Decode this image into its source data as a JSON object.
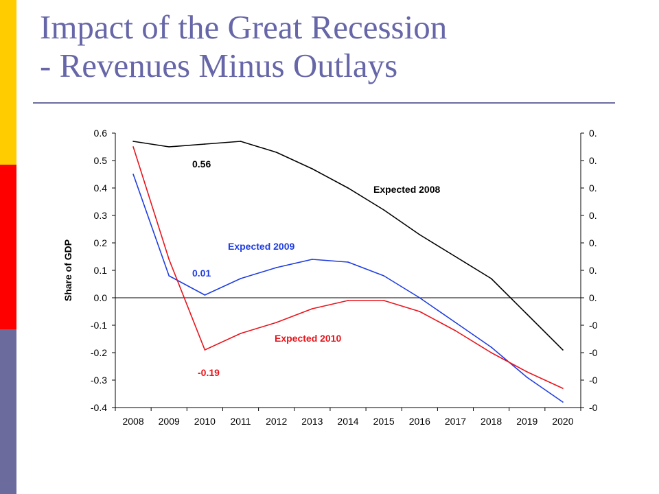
{
  "slide": {
    "title_line1": "Impact of the Great Recession",
    "title_line2": "- Revenues Minus Outlays",
    "accent_colors": [
      "#FFCC00",
      "#FF0000",
      "#6B6B9E"
    ],
    "title_color": "#6666A8"
  },
  "chart_data": {
    "type": "line",
    "title": "",
    "xlabel": "",
    "ylabel": "Share of GDP",
    "categories": [
      "2008",
      "2009",
      "2010",
      "2011",
      "2012",
      "2013",
      "2014",
      "2015",
      "2016",
      "2017",
      "2018",
      "2019",
      "2020"
    ],
    "y_ticks": [
      "0.6",
      "0.5",
      "0.4",
      "0.3",
      "0.2",
      "0.1",
      "0.0",
      "-0.1",
      "-0.2",
      "-0.3",
      "-0.4"
    ],
    "ylim": [
      -0.4,
      0.6
    ],
    "grid": false,
    "secondary_axis": true,
    "zero_line": true,
    "series": [
      {
        "name": "Expected 2008",
        "color": "#000000",
        "values": [
          0.57,
          0.55,
          0.56,
          0.57,
          0.53,
          0.47,
          0.4,
          0.32,
          0.23,
          0.15,
          0.07,
          -0.06,
          -0.19
        ]
      },
      {
        "name": "Expected 2009",
        "color": "#1F3DE0",
        "values": [
          0.45,
          0.08,
          0.01,
          0.07,
          0.11,
          0.14,
          0.13,
          0.08,
          0.0,
          -0.09,
          -0.18,
          -0.29,
          -0.38
        ]
      },
      {
        "name": "Expected 2010",
        "color": "#E8141B",
        "values": [
          0.55,
          0.14,
          -0.19,
          -0.13,
          -0.09,
          -0.04,
          -0.01,
          -0.01,
          -0.05,
          -0.12,
          -0.2,
          -0.27,
          -0.33
        ]
      }
    ],
    "annotations": [
      {
        "text": "0.56",
        "color": "#000000"
      },
      {
        "text": "0.01",
        "color": "#1F3DE0"
      },
      {
        "text": "-0.19",
        "color": "#E8141B"
      }
    ]
  }
}
